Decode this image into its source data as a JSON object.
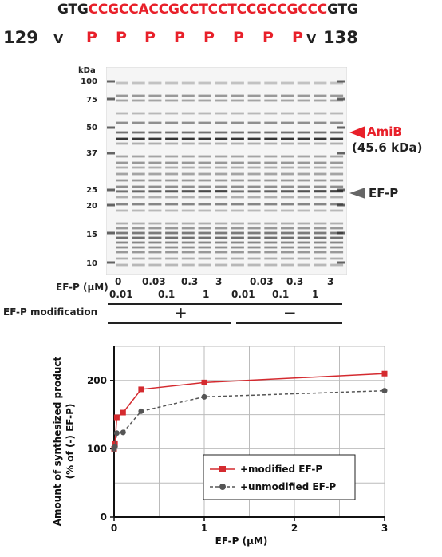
{
  "sequence": {
    "prefix": "GTG",
    "highlight": "CCGCCACCGCCTCCTCCGCCGCCC",
    "suffix": "GTG"
  },
  "residues": {
    "start_number": "129",
    "end_number": "138",
    "amino_acids": [
      "V",
      "P",
      "P",
      "P",
      "P",
      "P",
      "P",
      "P",
      "P",
      "V"
    ]
  },
  "gel": {
    "unit_label": "kDa",
    "markers": [
      "100",
      "75",
      "50",
      "37",
      "25",
      "20",
      "15",
      "10"
    ],
    "band_labels": {
      "amib_name": "AmiB",
      "amib_size": "(45.6 kDa)",
      "efp_name": "EF-P"
    },
    "efp_row_label": "EF-P (μM)",
    "upper_concentrations": [
      "0",
      "0.03",
      "0.3",
      "3",
      "0.03",
      "0.3",
      "3"
    ],
    "lower_concentrations": [
      "0.01",
      "0.1",
      "1",
      "0.01",
      "0.1",
      "1"
    ],
    "modification_label": "EF-P modification",
    "modification_plus": "+",
    "modification_minus": "−"
  },
  "chart_data": {
    "type": "line",
    "title": "",
    "xlabel": "EF-P (μM)",
    "ylabel": "Amount of synthesized product (% of (-) EF-P)",
    "xlim": [
      0,
      3
    ],
    "ylim": [
      0,
      250
    ],
    "x_ticks": [
      "0",
      "1",
      "2",
      "3"
    ],
    "y_ticks": [
      "0",
      "100",
      "200"
    ],
    "grid": true,
    "legend_position": "bottom-right",
    "series": [
      {
        "name": "+modified EF-P",
        "color": "#d42a2f",
        "marker": "square",
        "line": "solid",
        "x": [
          0,
          0.01,
          0.03,
          0.1,
          0.3,
          1,
          3
        ],
        "y": [
          100,
          107,
          146,
          153,
          187,
          197,
          210
        ]
      },
      {
        "name": "+unmodified EF-P",
        "color": "#555555",
        "marker": "circle",
        "line": "dashed",
        "x": [
          0,
          0.01,
          0.03,
          0.1,
          0.3,
          1,
          3
        ],
        "y": [
          100,
          103,
          123,
          124,
          155,
          176,
          185
        ]
      }
    ]
  }
}
